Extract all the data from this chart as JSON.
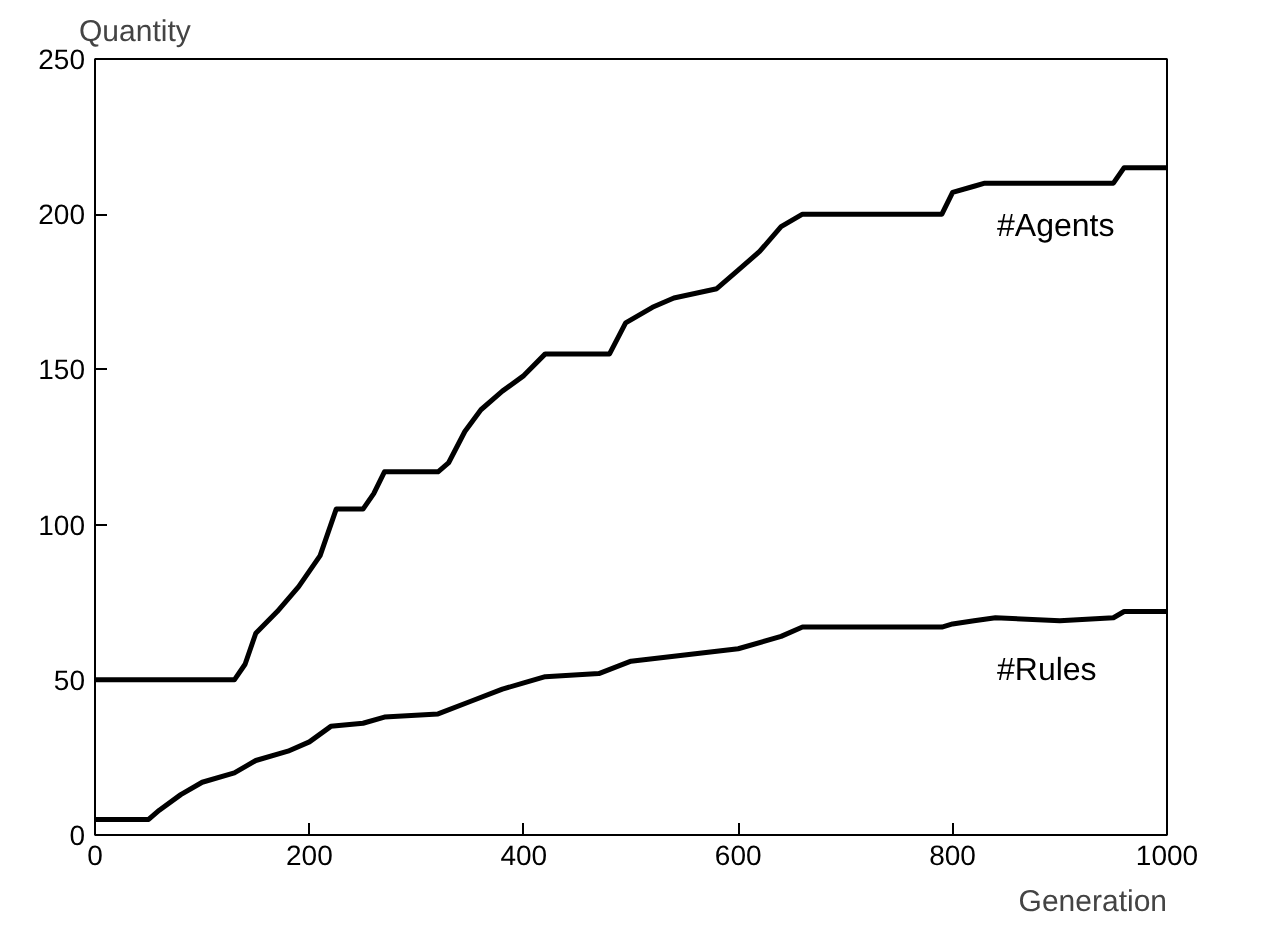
{
  "chart_data": {
    "type": "line",
    "xlabel": "Generation",
    "ylabel": "Quantity",
    "xlim": [
      0,
      1000
    ],
    "ylim": [
      0,
      250
    ],
    "xticks": [
      0,
      200,
      400,
      600,
      800,
      1000
    ],
    "yticks": [
      0,
      50,
      100,
      150,
      200,
      250
    ],
    "grid": false,
    "marker": "none",
    "line_style": "solid",
    "series": [
      {
        "name": "#Agents",
        "color": "#000000",
        "x": [
          0,
          130,
          140,
          150,
          170,
          190,
          210,
          225,
          250,
          260,
          270,
          320,
          330,
          345,
          360,
          380,
          400,
          420,
          480,
          495,
          520,
          540,
          580,
          600,
          620,
          640,
          660,
          790,
          800,
          820,
          830,
          950,
          960,
          1000
        ],
        "values": [
          50,
          50,
          55,
          65,
          72,
          80,
          90,
          105,
          105,
          110,
          117,
          117,
          120,
          130,
          137,
          143,
          148,
          155,
          155,
          165,
          170,
          173,
          176,
          182,
          188,
          196,
          200,
          200,
          207,
          209,
          210,
          210,
          215,
          215
        ]
      },
      {
        "name": "#Rules",
        "color": "#000000",
        "x": [
          0,
          50,
          60,
          80,
          100,
          130,
          150,
          180,
          200,
          220,
          250,
          270,
          320,
          350,
          380,
          400,
          420,
          470,
          500,
          550,
          600,
          640,
          660,
          790,
          800,
          820,
          840,
          900,
          950,
          960,
          1000
        ],
        "values": [
          5,
          5,
          8,
          13,
          17,
          20,
          24,
          27,
          30,
          35,
          36,
          38,
          39,
          43,
          47,
          49,
          51,
          52,
          56,
          58,
          60,
          64,
          67,
          67,
          68,
          69,
          70,
          69,
          70,
          72,
          72
        ]
      }
    ]
  }
}
